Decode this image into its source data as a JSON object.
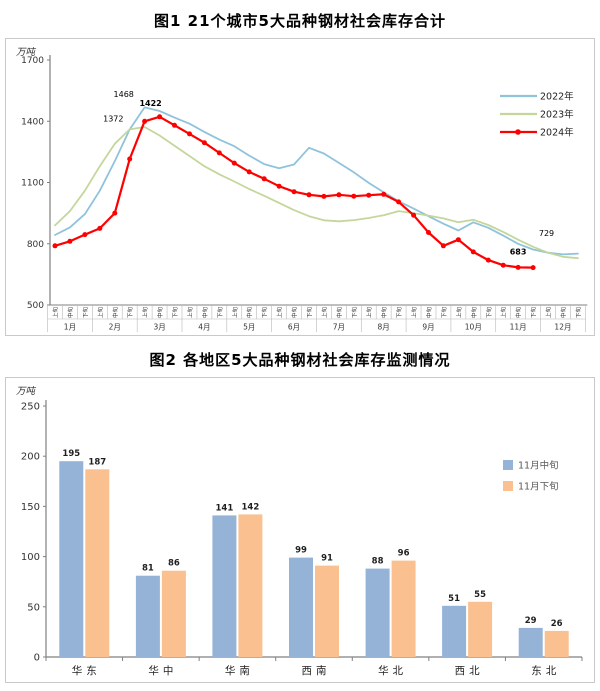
{
  "chart_data": [
    {
      "id": "fig1",
      "type": "line",
      "title": "图1  21个城市5大品种钢材社会库存合计",
      "ylabel": "万吨",
      "ylim": [
        500,
        1700
      ],
      "ytick_step": 300,
      "grid": false,
      "legend_position": "top-right",
      "months": [
        "1月",
        "2月",
        "3月",
        "4月",
        "5月",
        "6月",
        "7月",
        "8月",
        "9月",
        "10月",
        "11月",
        "12月"
      ],
      "periods": [
        "上旬",
        "中旬",
        "下旬"
      ],
      "series": [
        {
          "name": "2022年",
          "color": "#8FC3DC",
          "marker": false,
          "values": [
            843,
            880,
            945,
            1060,
            1205,
            1360,
            1468,
            1450,
            1418,
            1388,
            1348,
            1310,
            1278,
            1232,
            1190,
            1170,
            1188,
            1270,
            1242,
            1196,
            1150,
            1098,
            1052,
            1008,
            972,
            935,
            898,
            865,
            905,
            878,
            840,
            800,
            772,
            756,
            748,
            752
          ]
        },
        {
          "name": "2023年",
          "color": "#C4D79B",
          "marker": false,
          "values": [
            890,
            960,
            1060,
            1180,
            1290,
            1360,
            1372,
            1330,
            1280,
            1230,
            1180,
            1140,
            1105,
            1068,
            1035,
            1000,
            965,
            935,
            915,
            910,
            916,
            926,
            940,
            960,
            950,
            938,
            924,
            905,
            918,
            892,
            858,
            820,
            785,
            756,
            736,
            729
          ]
        },
        {
          "name": "2024年",
          "color": "#FF0000",
          "marker": true,
          "values": [
            790,
            812,
            845,
            875,
            950,
            1215,
            1400,
            1422,
            1380,
            1338,
            1295,
            1245,
            1195,
            1152,
            1118,
            1082,
            1055,
            1040,
            1032,
            1040,
            1033,
            1038,
            1042,
            1005,
            940,
            855,
            790,
            820,
            760,
            720,
            695,
            684,
            683
          ]
        }
      ],
      "annotations": [
        {
          "text": "1468",
          "slot": 4.6,
          "value": 1520,
          "bold": false
        },
        {
          "text": "1422",
          "slot": 6.4,
          "value": 1475,
          "bold": true
        },
        {
          "text": "1372",
          "slot": 3.9,
          "value": 1398,
          "bold": false
        },
        {
          "text": "683",
          "slot": 31.0,
          "value": 748,
          "bold": true
        },
        {
          "text": "729",
          "slot": 32.9,
          "value": 838,
          "bold": false
        }
      ]
    },
    {
      "id": "fig2",
      "type": "bar",
      "title": "图2  各地区5大品种钢材社会库存监测情况",
      "ylabel": "万吨",
      "ylim": [
        0,
        250
      ],
      "ytick_step": 50,
      "grid": false,
      "legend_position": "right",
      "categories": [
        "华东",
        "华中",
        "华南",
        "西南",
        "华北",
        "西北",
        "东北"
      ],
      "series": [
        {
          "name": "11月中旬",
          "color": "#95B3D7",
          "values": [
            195,
            81,
            141,
            99,
            88,
            51,
            29
          ]
        },
        {
          "name": "11月下旬",
          "color": "#FAC090",
          "values": [
            187,
            86,
            142,
            91,
            96,
            55,
            26
          ]
        }
      ]
    }
  ],
  "colors": {
    "axis": "#808080",
    "cell_border": "#b8b8b8",
    "box_border": "#c9c9c9",
    "tick_text": "#333333",
    "bar_label": "#1f1f1f",
    "legend_text": "#595959"
  }
}
